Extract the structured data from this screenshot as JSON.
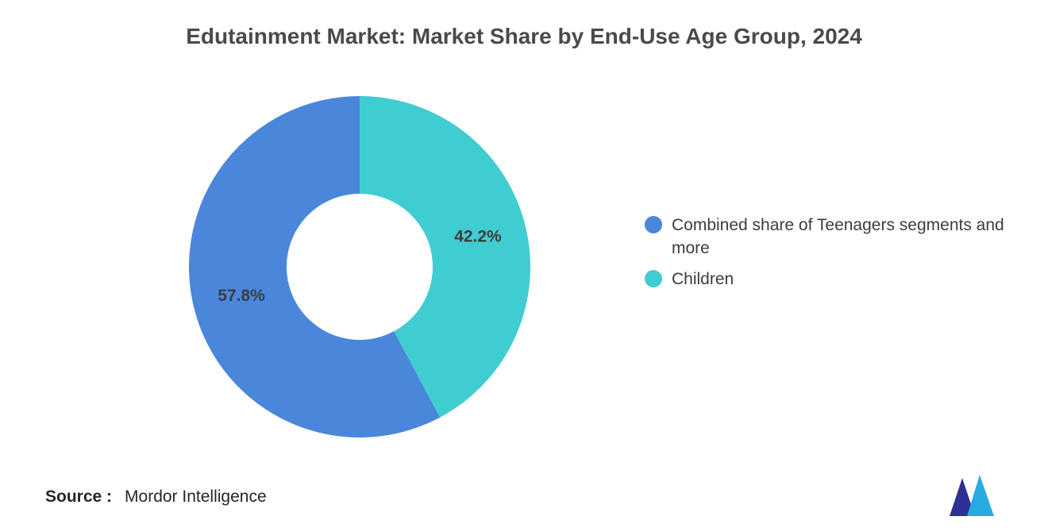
{
  "chart_data": {
    "type": "pie",
    "donut": true,
    "title": "Edutainment Market: Market Share by End-Use Age Group, 2024",
    "series": [
      {
        "name": "Combined share of Teenagers segments and more",
        "value": 57.8,
        "label": "57.8%",
        "color": "#4a87db"
      },
      {
        "name": "Children",
        "value": 42.2,
        "label": "42.2%",
        "color": "#40cdd2"
      }
    ],
    "start_angle_deg": 0,
    "direction": "counterclockwise",
    "legend_position": "right",
    "inner_radius_ratio": 0.43,
    "label_color": "#3d3d3d",
    "title_color": "#4a4a4a"
  },
  "source": {
    "label": "Source :",
    "value": "Mordor Intelligence"
  },
  "logo": {
    "name": "mordor-intelligence-logo",
    "colors": {
      "dark": "#2e3192",
      "light": "#29abe2"
    }
  }
}
